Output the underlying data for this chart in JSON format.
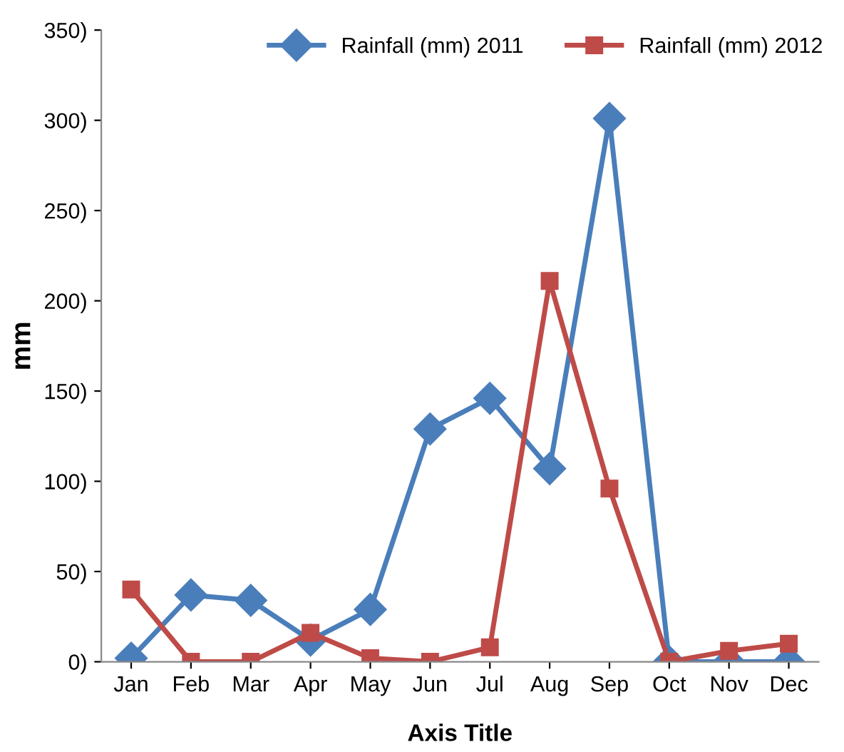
{
  "chart_data": {
    "type": "line",
    "xlabel": "Axis Title",
    "ylabel": "mm",
    "categories": [
      "Jan",
      "Feb",
      "Mar",
      "Apr",
      "May",
      "Jun",
      "Jul",
      "Aug",
      "Sep",
      "Oct",
      "Nov",
      "Dec"
    ],
    "series": [
      {
        "name": "Rainfall (mm) 2011",
        "color": "#4a7ebb",
        "marker": "diamond",
        "values": [
          2,
          37,
          34,
          12,
          29,
          129,
          146,
          107,
          301,
          0,
          0,
          0
        ]
      },
      {
        "name": "Rainfall (mm) 2012",
        "color": "#be4b48",
        "marker": "square",
        "values": [
          40,
          0,
          0,
          16,
          2,
          0,
          8,
          211,
          96,
          0,
          6,
          10
        ]
      }
    ],
    "ylim": [
      0,
      350
    ],
    "yticks": [
      {
        "value": 0,
        "label": "0)"
      },
      {
        "value": 50,
        "label": "50)"
      },
      {
        "value": 100,
        "label": "100)"
      },
      {
        "value": 150,
        "label": "150)"
      },
      {
        "value": 200,
        "label": "200)"
      },
      {
        "value": 250,
        "label": "250)"
      },
      {
        "value": 300,
        "label": "300)"
      },
      {
        "value": 350,
        "label": "350)"
      }
    ],
    "legend": "top",
    "grid": false,
    "line_style": "solid"
  }
}
